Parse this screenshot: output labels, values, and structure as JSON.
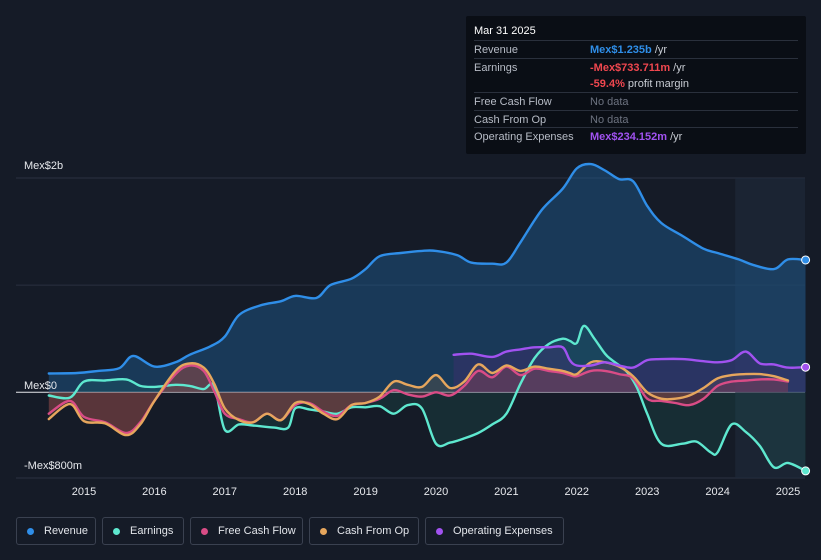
{
  "tooltip": {
    "date": "Mar 31 2025",
    "rows": [
      {
        "label": "Revenue",
        "value": "Mex$1.235b",
        "unit": " /yr",
        "color": "#2f8ee8"
      },
      {
        "label": "Earnings",
        "value": "-Mex$733.711m",
        "unit": " /yr",
        "color": "#f0474f"
      },
      {
        "label": "",
        "value": "-59.4%",
        "unit": " profit margin",
        "color": "#f0474f"
      },
      {
        "label": "Free Cash Flow",
        "value": "No data",
        "unit": "",
        "color": "#6d7380"
      },
      {
        "label": "Cash From Op",
        "value": "No data",
        "unit": "",
        "color": "#6d7380"
      },
      {
        "label": "Operating Expenses",
        "value": "Mex$234.152m",
        "unit": " /yr",
        "color": "#a152f0"
      }
    ]
  },
  "legend": [
    {
      "label": "Revenue",
      "color": "#2f8ee8"
    },
    {
      "label": "Earnings",
      "color": "#5ee8cf"
    },
    {
      "label": "Free Cash Flow",
      "color": "#d94c86"
    },
    {
      "label": "Cash From Op",
      "color": "#e6a65d"
    },
    {
      "label": "Operating Expenses",
      "color": "#a152f0"
    }
  ],
  "chart_data": {
    "type": "area",
    "title": "",
    "xlabel": "",
    "ylabel": "",
    "y_top_label": "Mex$2b",
    "y_zero_label": "Mex$0",
    "y_bottom_label": "-Mex$800m",
    "ylim": [
      -800,
      2000
    ],
    "xlim": [
      2014.4,
      2025.25
    ],
    "x_ticks": [
      2015,
      2016,
      2017,
      2018,
      2019,
      2020,
      2021,
      2022,
      2023,
      2024,
      2025
    ],
    "x_tick_labels": [
      "2015",
      "2016",
      "2017",
      "2018",
      "2019",
      "2020",
      "2021",
      "2022",
      "2023",
      "2024",
      "2025"
    ],
    "unit": "Mex$ millions",
    "series": [
      {
        "name": "Revenue",
        "color": "#2f8ee8",
        "x": [
          2014.5,
          2014.9,
          2015.2,
          2015.5,
          2015.7,
          2016.0,
          2016.3,
          2016.5,
          2016.8,
          2017.0,
          2017.2,
          2017.5,
          2017.8,
          2018.0,
          2018.3,
          2018.5,
          2018.8,
          2019.0,
          2019.2,
          2019.5,
          2019.8,
          2020.0,
          2020.3,
          2020.5,
          2020.8,
          2021.0,
          2021.2,
          2021.5,
          2021.8,
          2022.0,
          2022.2,
          2022.4,
          2022.6,
          2022.8,
          2023.0,
          2023.2,
          2023.5,
          2023.8,
          2024.0,
          2024.3,
          2024.5,
          2024.8,
          2025.0,
          2025.25
        ],
        "y": [
          175,
          180,
          200,
          225,
          340,
          240,
          280,
          350,
          430,
          520,
          720,
          810,
          850,
          900,
          880,
          1000,
          1060,
          1150,
          1270,
          1300,
          1320,
          1320,
          1280,
          1210,
          1200,
          1210,
          1400,
          1700,
          1900,
          2090,
          2130,
          2070,
          1990,
          1970,
          1740,
          1580,
          1460,
          1340,
          1300,
          1240,
          1190,
          1150,
          1240,
          1235
        ]
      },
      {
        "name": "Earnings",
        "color": "#5ee8cf",
        "x": [
          2014.5,
          2014.8,
          2015.0,
          2015.3,
          2015.6,
          2015.8,
          2016.0,
          2016.3,
          2016.5,
          2016.7,
          2016.85,
          2017.0,
          2017.2,
          2017.4,
          2017.7,
          2017.9,
          2018.0,
          2018.2,
          2018.4,
          2018.6,
          2018.8,
          2019.0,
          2019.2,
          2019.4,
          2019.6,
          2019.8,
          2020.0,
          2020.2,
          2020.4,
          2020.6,
          2020.8,
          2021.0,
          2021.2,
          2021.4,
          2021.6,
          2021.8,
          2021.9,
          2022.0,
          2022.1,
          2022.25,
          2022.4,
          2022.5,
          2022.7,
          2022.85,
          2023.0,
          2023.2,
          2023.5,
          2023.7,
          2023.9,
          2024.0,
          2024.2,
          2024.4,
          2024.6,
          2024.8,
          2025.0,
          2025.25
        ],
        "y": [
          -30,
          -50,
          100,
          110,
          120,
          60,
          50,
          70,
          60,
          30,
          60,
          -350,
          -300,
          -310,
          -330,
          -330,
          -150,
          -160,
          -180,
          -200,
          -140,
          -140,
          -130,
          -200,
          -120,
          -150,
          -480,
          -470,
          -430,
          -380,
          -300,
          -200,
          80,
          320,
          450,
          500,
          480,
          460,
          620,
          500,
          360,
          300,
          200,
          50,
          -200,
          -480,
          -480,
          -460,
          -560,
          -560,
          -300,
          -370,
          -500,
          -700,
          -660,
          -733.711
        ]
      },
      {
        "name": "Free Cash Flow",
        "color": "#d94c86",
        "x": [
          2014.5,
          2014.8,
          2015.0,
          2015.3,
          2015.6,
          2015.8,
          2016.0,
          2016.3,
          2016.5,
          2016.7,
          2016.85,
          2017.0,
          2017.2,
          2017.4,
          2017.6,
          2017.8,
          2018.0,
          2018.2,
          2018.4,
          2018.6,
          2018.8,
          2019.0,
          2019.2,
          2019.4,
          2019.6,
          2019.8,
          2020.0,
          2020.2,
          2020.4,
          2020.6,
          2020.8,
          2021.0,
          2021.2,
          2021.4,
          2021.6,
          2021.8,
          2021.9,
          2022.0,
          2022.2,
          2022.4,
          2022.6,
          2022.8,
          2023.0,
          2023.2,
          2023.4,
          2023.6,
          2023.8,
          2024.0,
          2024.2,
          2024.4,
          2024.6,
          2024.8,
          2025.0
        ],
        "y": [
          -200,
          -80,
          -230,
          -280,
          -380,
          -280,
          -80,
          170,
          250,
          200,
          10,
          -200,
          -250,
          -280,
          -200,
          -260,
          -120,
          -100,
          -180,
          -220,
          -120,
          -100,
          -60,
          20,
          -20,
          -40,
          0,
          -30,
          60,
          200,
          140,
          240,
          160,
          220,
          200,
          180,
          160,
          150,
          200,
          200,
          170,
          130,
          -60,
          -80,
          -100,
          -120,
          -60,
          60,
          100,
          110,
          120,
          120,
          100
        ]
      },
      {
        "name": "Cash From Op",
        "color": "#e6a65d",
        "x": [
          2014.5,
          2014.8,
          2015.0,
          2015.3,
          2015.6,
          2015.8,
          2016.0,
          2016.3,
          2016.5,
          2016.7,
          2016.85,
          2017.0,
          2017.2,
          2017.4,
          2017.6,
          2017.8,
          2018.0,
          2018.2,
          2018.4,
          2018.6,
          2018.8,
          2019.0,
          2019.2,
          2019.4,
          2019.6,
          2019.8,
          2020.0,
          2020.2,
          2020.4,
          2020.6,
          2020.8,
          2021.0,
          2021.2,
          2021.4,
          2021.6,
          2021.8,
          2021.9,
          2022.0,
          2022.2,
          2022.4,
          2022.6,
          2022.8,
          2023.0,
          2023.2,
          2023.4,
          2023.6,
          2023.8,
          2024.0,
          2024.2,
          2024.4,
          2024.6,
          2024.8,
          2025.0
        ],
        "y": [
          -250,
          -110,
          -270,
          -290,
          -400,
          -300,
          -80,
          200,
          270,
          230,
          80,
          -150,
          -260,
          -280,
          -200,
          -260,
          -100,
          -110,
          -200,
          -250,
          -120,
          -100,
          -40,
          100,
          70,
          50,
          160,
          40,
          100,
          260,
          180,
          250,
          200,
          240,
          220,
          200,
          180,
          170,
          280,
          280,
          240,
          150,
          0,
          -60,
          -60,
          -30,
          40,
          130,
          160,
          170,
          170,
          150,
          110
        ]
      },
      {
        "name": "Operating Expenses",
        "color": "#a152f0",
        "x": [
          2020.25,
          2020.5,
          2020.8,
          2021.0,
          2021.2,
          2021.4,
          2021.6,
          2021.8,
          2021.9,
          2022.0,
          2022.2,
          2022.4,
          2022.6,
          2022.8,
          2023.0,
          2023.2,
          2023.5,
          2023.8,
          2024.0,
          2024.2,
          2024.4,
          2024.6,
          2024.8,
          2025.0,
          2025.25
        ],
        "y": [
          350,
          360,
          330,
          380,
          400,
          420,
          420,
          420,
          300,
          250,
          250,
          280,
          250,
          230,
          300,
          310,
          310,
          290,
          280,
          300,
          380,
          270,
          260,
          230,
          234.152
        ]
      }
    ]
  }
}
